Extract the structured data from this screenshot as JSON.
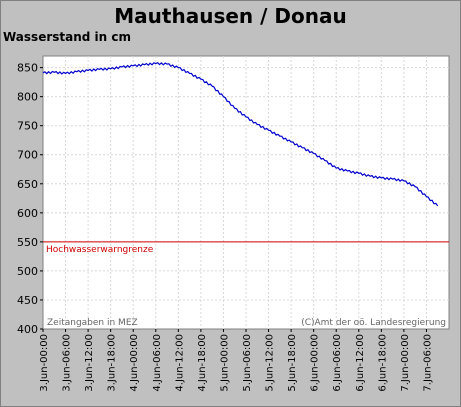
{
  "chart_data": {
    "type": "line",
    "title": "Mauthausen / Donau",
    "ylabel": "Wasserstand in cm",
    "xlabel": "",
    "ylim": [
      400,
      870
    ],
    "yticks": [
      400,
      450,
      500,
      550,
      600,
      650,
      700,
      750,
      800,
      850
    ],
    "xlim": [
      "3.Jun-00:00",
      "7.Jun-12:00"
    ],
    "xticks": [
      "3.Jun-00:00",
      "3.Jun-06:00",
      "3.Jun-12:00",
      "3.Jun-18:00",
      "4.Jun-00:00",
      "4.Jun-06:00",
      "4.Jun-12:00",
      "4.Jun-18:00",
      "5.Jun-00:00",
      "5.Jun-06:00",
      "5.Jun-12:00",
      "5.Jun-18:00",
      "6.Jun-00:00",
      "6.Jun-06:00",
      "6.Jun-12:00",
      "6.Jun-18:00",
      "7.Jun-00:00",
      "7.Jun-06:00"
    ],
    "grid": true,
    "series": [
      {
        "color": "#0000cc",
        "x": [
          "3.Jun-00:00",
          "3.Jun-03:00",
          "3.Jun-06:00",
          "3.Jun-09:00",
          "3.Jun-12:00",
          "3.Jun-15:00",
          "3.Jun-18:00",
          "3.Jun-21:00",
          "4.Jun-00:00",
          "4.Jun-03:00",
          "4.Jun-06:00",
          "4.Jun-09:00",
          "4.Jun-12:00",
          "4.Jun-15:00",
          "4.Jun-18:00",
          "4.Jun-21:00",
          "5.Jun-00:00",
          "5.Jun-03:00",
          "5.Jun-06:00",
          "5.Jun-09:00",
          "5.Jun-12:00",
          "5.Jun-15:00",
          "5.Jun-18:00",
          "5.Jun-21:00",
          "6.Jun-00:00",
          "6.Jun-03:00",
          "6.Jun-06:00",
          "6.Jun-09:00",
          "6.Jun-12:00",
          "6.Jun-15:00",
          "6.Jun-18:00",
          "6.Jun-21:00",
          "7.Jun-00:00",
          "7.Jun-03:00",
          "7.Jun-06:00",
          "7.Jun-09:00"
        ],
        "y": [
          841,
          842,
          840,
          843,
          845,
          847,
          848,
          851,
          853,
          855,
          857,
          856,
          850,
          840,
          830,
          818,
          800,
          780,
          765,
          752,
          742,
          732,
          722,
          712,
          702,
          690,
          677,
          672,
          668,
          663,
          660,
          658,
          655,
          645,
          628,
          612
        ]
      }
    ],
    "reference_line": {
      "y": 550,
      "color": "#d00000",
      "label": "Hochwasserwarngrenze"
    },
    "annotations": {
      "left_note": "Zeitangaben in MEZ",
      "right_note": "(C)Amt der oö. Landesregierung"
    }
  }
}
